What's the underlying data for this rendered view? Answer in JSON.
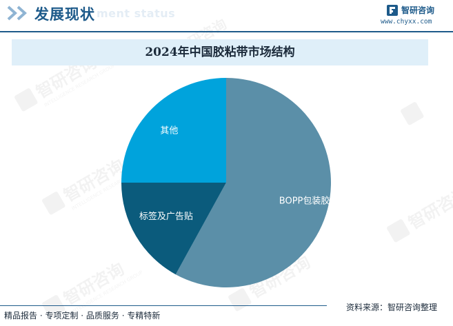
{
  "header": {
    "title": "发展现状",
    "ghost_text": "ment status",
    "chevron_color": "#8fb4d3",
    "title_color": "#1d5a8a"
  },
  "brand": {
    "name": "智研咨询",
    "url": "www.chyxx.com"
  },
  "watermark": {
    "text": "智研咨询",
    "subtext": "INTELLIGENCE RESEARCH GROUP"
  },
  "chart_data": {
    "type": "pie",
    "title": "2024年中国胶粘带市场结构",
    "slices": [
      {
        "label": "BOPP包装胶带",
        "value": 58,
        "color": "#5b8fa8"
      },
      {
        "label": "标签及广告贴",
        "value": 17,
        "color": "#0b5b7c"
      },
      {
        "label": "其他",
        "value": 25,
        "color": "#00a3dc"
      }
    ],
    "start_angle_deg": 0,
    "direction": "clockwise",
    "label_color": "#ffffff"
  },
  "footer": {
    "left": "精品报告 · 专项定制 · 品质服务 · 专精特新",
    "right": "资料来源：智研咨询整理"
  }
}
